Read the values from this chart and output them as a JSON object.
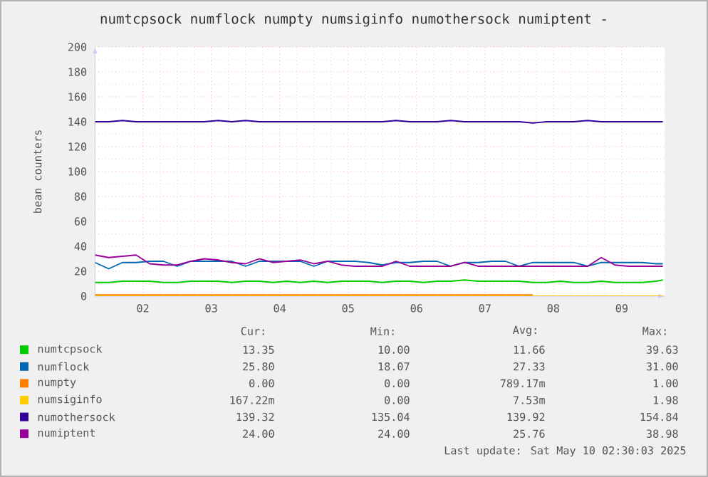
{
  "chart_data": {
    "type": "line",
    "title": "numtcpsock numflock numpty numsiginfo numothersock numiptent -",
    "ylabel": "bean counters",
    "x": [
      1.3,
      1.5,
      1.7,
      1.9,
      2.1,
      2.3,
      2.5,
      2.7,
      2.9,
      3.1,
      3.3,
      3.5,
      3.7,
      3.9,
      4.1,
      4.3,
      4.5,
      4.7,
      4.9,
      5.1,
      5.3,
      5.5,
      5.7,
      5.9,
      6.1,
      6.3,
      6.5,
      6.7,
      6.9,
      7.1,
      7.3,
      7.5,
      7.7,
      7.9,
      8.1,
      8.3,
      8.5,
      8.7,
      8.9,
      9.1,
      9.3,
      9.5,
      9.6
    ],
    "xlim": [
      1.3,
      9.63
    ],
    "xticks": [
      {
        "value": 2,
        "label": "02"
      },
      {
        "value": 3,
        "label": "03"
      },
      {
        "value": 4,
        "label": "04"
      },
      {
        "value": 5,
        "label": "05"
      },
      {
        "value": 6,
        "label": "06"
      },
      {
        "value": 7,
        "label": "07"
      },
      {
        "value": 8,
        "label": "08"
      },
      {
        "value": 9,
        "label": "09"
      }
    ],
    "ylim": [
      0,
      200
    ],
    "yticks": [
      0,
      20,
      40,
      60,
      80,
      100,
      120,
      140,
      160,
      180,
      200
    ],
    "grid": true,
    "legend": "bottom",
    "series": [
      {
        "name": "numtcpsock",
        "color": "#00cc00",
        "values": [
          11,
          11,
          12,
          12,
          12,
          11,
          11,
          12,
          12,
          12,
          11,
          12,
          12,
          11,
          12,
          11,
          12,
          11,
          12,
          12,
          12,
          11,
          12,
          12,
          11,
          12,
          12,
          13,
          12,
          12,
          12,
          12,
          11,
          11,
          12,
          11,
          11,
          12,
          11,
          11,
          11,
          12,
          13
        ]
      },
      {
        "name": "numflock",
        "color": "#0066b3",
        "values": [
          27,
          22,
          27,
          27,
          28,
          28,
          24,
          28,
          28,
          28,
          28,
          24,
          28,
          28,
          28,
          28,
          24,
          28,
          28,
          28,
          27,
          25,
          27,
          27,
          28,
          28,
          24,
          27,
          27,
          28,
          28,
          24,
          27,
          27,
          27,
          27,
          24,
          27,
          27,
          27,
          27,
          26,
          26
        ]
      },
      {
        "name": "numpty",
        "color": "#ff8000",
        "values": [
          1,
          1,
          1,
          1,
          1,
          1,
          1,
          1,
          1,
          1,
          1,
          1,
          1,
          1,
          1,
          1,
          1,
          1,
          1,
          1,
          1,
          1,
          1,
          1,
          1,
          1,
          1,
          1,
          1,
          1,
          1,
          1,
          1,
          null,
          null,
          null,
          null,
          null,
          null,
          null,
          null,
          null,
          null
        ]
      },
      {
        "name": "numsiginfo",
        "color": "#ffcc00",
        "values": [
          0,
          0,
          0,
          0,
          0,
          0,
          0,
          0,
          0,
          0,
          0,
          0,
          0,
          0,
          0,
          0,
          0,
          0,
          0,
          0,
          0,
          0,
          0,
          0,
          0,
          0,
          0,
          0,
          0,
          0,
          0,
          0,
          0,
          0,
          0,
          0,
          0,
          0,
          0,
          0,
          0,
          0,
          0
        ]
      },
      {
        "name": "numothersock",
        "color": "#330099",
        "values": [
          140,
          140,
          141,
          140,
          140,
          140,
          140,
          140,
          140,
          141,
          140,
          141,
          140,
          140,
          140,
          140,
          140,
          140,
          140,
          140,
          140,
          140,
          141,
          140,
          140,
          140,
          141,
          140,
          140,
          140,
          140,
          140,
          139,
          140,
          140,
          140,
          141,
          140,
          140,
          140,
          140,
          140,
          140
        ]
      },
      {
        "name": "numiptent",
        "color": "#990099",
        "values": [
          33,
          31,
          32,
          33,
          26,
          25,
          25,
          28,
          30,
          29,
          27,
          26,
          30,
          27,
          28,
          29,
          26,
          28,
          25,
          24,
          24,
          24,
          28,
          24,
          24,
          24,
          24,
          27,
          24,
          24,
          24,
          24,
          24,
          24,
          24,
          24,
          24,
          31,
          25,
          24,
          24,
          24,
          24
        ]
      }
    ],
    "annotations": [
      "Cur:",
      "Min:",
      "Avg:",
      "Max:",
      "13.35",
      "10.00",
      "11.66",
      "39.63",
      "25.80",
      "18.07",
      "27.33",
      "31.00",
      "0.00",
      "0.00",
      "789.17m",
      "1.00",
      "167.22m",
      "0.00",
      "7.53m",
      "1.98",
      "139.32",
      "135.04",
      "139.92",
      "154.84",
      "24.00",
      "24.00",
      "25.76",
      "38.98",
      "Last update: Sat May 10 02:30:03 2025"
    ]
  }
}
